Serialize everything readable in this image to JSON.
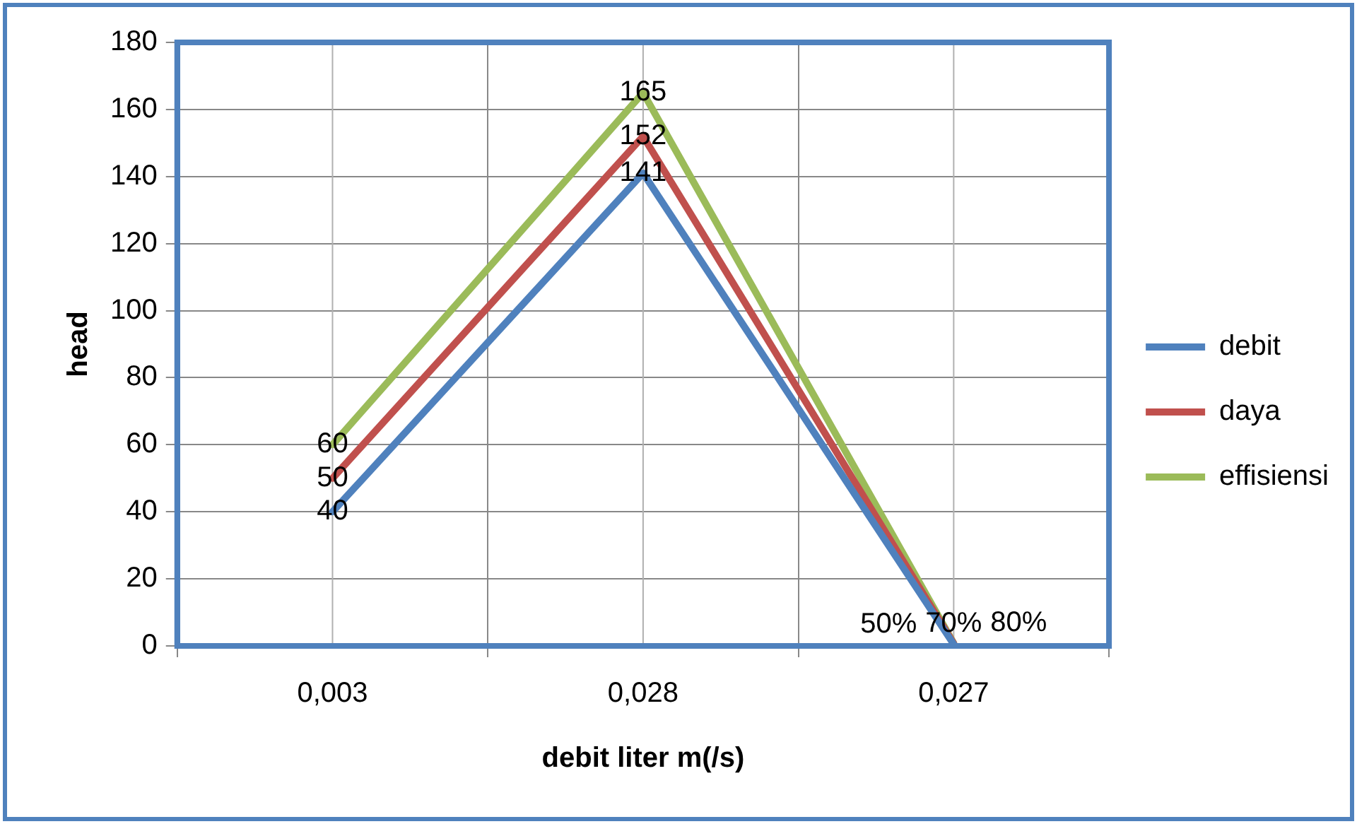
{
  "chart_data": {
    "type": "line",
    "xlabel": "debit liter m(/s)",
    "ylabel": "head",
    "categories": [
      "0,003",
      "0,028",
      "0,027"
    ],
    "series": [
      {
        "name": "debit",
        "color": "#4f81bd",
        "values": [
          40,
          141,
          0.5
        ],
        "value_labels": [
          "40",
          "141",
          "50%"
        ]
      },
      {
        "name": "daya",
        "color": "#c0504d",
        "values": [
          50,
          152,
          0.7
        ],
        "value_labels": [
          "50",
          "152",
          "70%"
        ]
      },
      {
        "name": "effisiensi",
        "color": "#9bbb59",
        "values": [
          60,
          165,
          0.8
        ],
        "value_labels": [
          "60",
          "165",
          "80%"
        ]
      }
    ],
    "ylim": [
      0,
      180
    ],
    "yticks": [
      0,
      20,
      40,
      60,
      80,
      100,
      120,
      140,
      160,
      180
    ],
    "grid": true,
    "legend": "right",
    "marker": "none",
    "line_style": "solid"
  }
}
